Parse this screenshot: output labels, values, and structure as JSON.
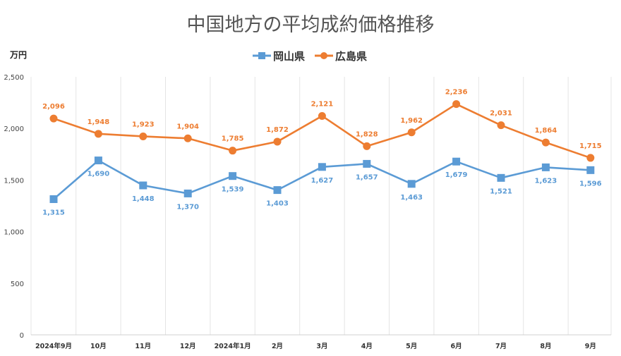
{
  "chart_data": {
    "type": "line",
    "title": "中国地方の平均成約価格推移",
    "ylabel": "万円",
    "xlabel": "",
    "ylim": [
      0,
      2500
    ],
    "yticks": [
      0,
      500,
      1000,
      1500,
      2000,
      2500
    ],
    "ytick_labels": [
      "0",
      "500",
      "1,000",
      "1,500",
      "2,000",
      "2,500"
    ],
    "grid": "vertical",
    "legend_position": "top-center",
    "categories": [
      "2024年9月",
      "10月",
      "11月",
      "12月",
      "2024年1月",
      "2月",
      "3月",
      "4月",
      "5月",
      "6月",
      "7月",
      "8月",
      "9月"
    ],
    "series": [
      {
        "name": "岡山県",
        "color": "#5b9bd5",
        "marker": "square",
        "values": [
          1315,
          1690,
          1448,
          1370,
          1539,
          1403,
          1627,
          1657,
          1463,
          1679,
          1521,
          1623,
          1596
        ],
        "labels": [
          "1,315",
          "1,690",
          "1,448",
          "1,370",
          "1,539",
          "1,403",
          "1,627",
          "1,657",
          "1,463",
          "1,679",
          "1,521",
          "1,623",
          "1,596"
        ],
        "label_position": "below"
      },
      {
        "name": "広島県",
        "color": "#ed7d31",
        "marker": "circle",
        "values": [
          2096,
          1948,
          1923,
          1904,
          1785,
          1872,
          2121,
          1828,
          1962,
          2236,
          2031,
          1864,
          1715
        ],
        "labels": [
          "2,096",
          "1,948",
          "1,923",
          "1,904",
          "1,785",
          "1,872",
          "2,121",
          "1,828",
          "1,962",
          "2,236",
          "2,031",
          "1,864",
          "1,715"
        ],
        "label_position": "above"
      }
    ]
  }
}
